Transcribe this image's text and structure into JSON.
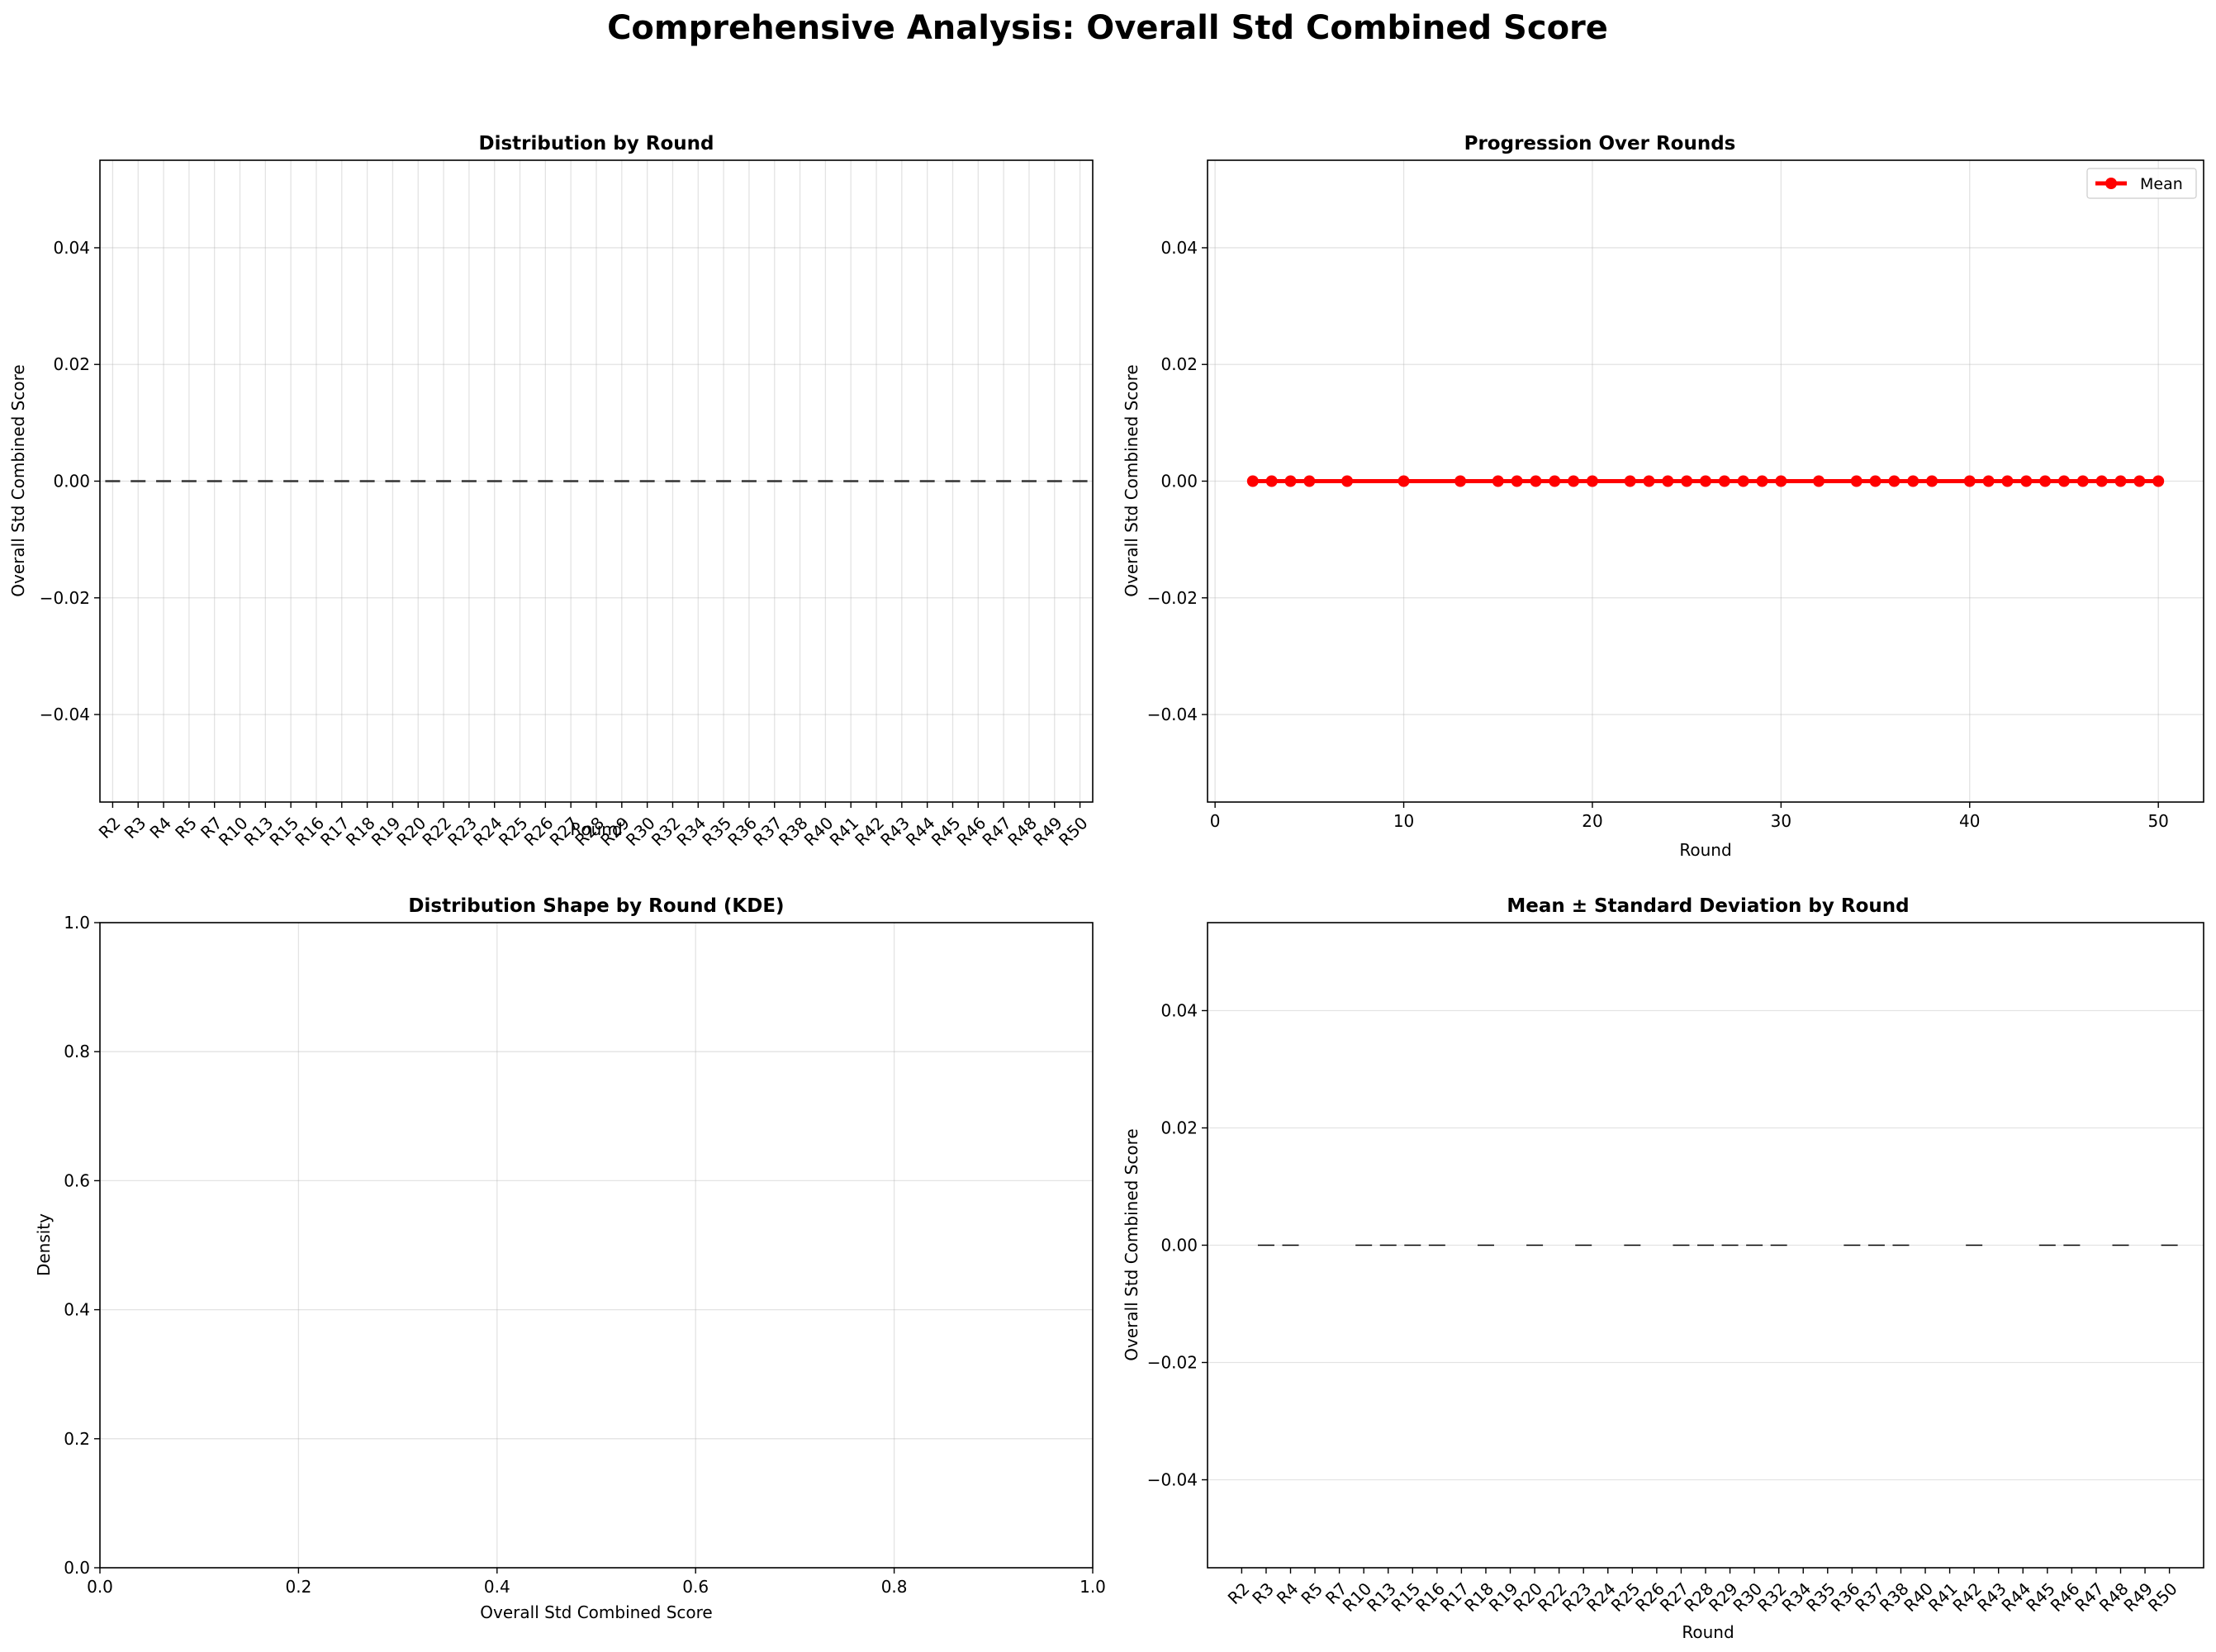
{
  "figure": {
    "title": "Comprehensive Analysis: Overall Std Combined Score"
  },
  "chart_data": [
    {
      "id": "box",
      "type": "box",
      "title": "Distribution by Round",
      "xlabel": "Round",
      "ylabel": "Overall Std Combined Score",
      "categories": [
        "R2",
        "R3",
        "R4",
        "R5",
        "R7",
        "R10",
        "R13",
        "R15",
        "R16",
        "R17",
        "R18",
        "R19",
        "R20",
        "R22",
        "R23",
        "R24",
        "R25",
        "R26",
        "R27",
        "R28",
        "R29",
        "R30",
        "R32",
        "R34",
        "R35",
        "R36",
        "R37",
        "R38",
        "R40",
        "R41",
        "R42",
        "R43",
        "R44",
        "R45",
        "R46",
        "R47",
        "R48",
        "R49",
        "R50"
      ],
      "medians": [
        0,
        0,
        0,
        0,
        0,
        0,
        0,
        0,
        0,
        0,
        0,
        0,
        0,
        0,
        0,
        0,
        0,
        0,
        0,
        0,
        0,
        0,
        0,
        0,
        0,
        0,
        0,
        0,
        0,
        0,
        0,
        0,
        0,
        0,
        0,
        0,
        0,
        0,
        0
      ],
      "ylim": [
        -0.055,
        0.055
      ],
      "yticks": [
        "0.04",
        "0.02",
        "0.00",
        "−0.02",
        "−0.04"
      ],
      "ytick_values": [
        0.04,
        0.02,
        0.0,
        -0.02,
        -0.04
      ],
      "grid": true
    },
    {
      "id": "line",
      "type": "line",
      "title": "Progression Over Rounds",
      "xlabel": "Round",
      "ylabel": "Overall Std Combined Score",
      "series": [
        {
          "name": "Mean",
          "color": "#ff0000",
          "x": [
            2,
            3,
            4,
            5,
            7,
            10,
            13,
            15,
            16,
            17,
            18,
            19,
            20,
            22,
            23,
            24,
            25,
            26,
            27,
            28,
            29,
            30,
            32,
            34,
            35,
            36,
            37,
            38,
            40,
            41,
            42,
            43,
            44,
            45,
            46,
            47,
            48,
            49,
            50
          ],
          "y": [
            0,
            0,
            0,
            0,
            0,
            0,
            0,
            0,
            0,
            0,
            0,
            0,
            0,
            0,
            0,
            0,
            0,
            0,
            0,
            0,
            0,
            0,
            0,
            0,
            0,
            0,
            0,
            0,
            0,
            0,
            0,
            0,
            0,
            0,
            0,
            0,
            0,
            0,
            0
          ]
        }
      ],
      "xlim": [
        -0.4,
        52.4
      ],
      "ylim": [
        -0.055,
        0.055
      ],
      "xticks": [
        "0",
        "10",
        "20",
        "30",
        "40",
        "50"
      ],
      "xtick_values": [
        0,
        10,
        20,
        30,
        40,
        50
      ],
      "yticks": [
        "0.04",
        "0.02",
        "0.00",
        "−0.02",
        "−0.04"
      ],
      "ytick_values": [
        0.04,
        0.02,
        0.0,
        -0.02,
        -0.04
      ],
      "legend": "top-right",
      "grid": true
    },
    {
      "id": "kde",
      "type": "line",
      "title": "Distribution Shape by Round (KDE)",
      "xlabel": "Overall Std Combined Score",
      "ylabel": "Density",
      "series": [],
      "xlim": [
        0,
        1
      ],
      "ylim": [
        0,
        1
      ],
      "xticks": [
        "0.0",
        "0.2",
        "0.4",
        "0.6",
        "0.8",
        "1.0"
      ],
      "xtick_values": [
        0,
        0.2,
        0.4,
        0.6,
        0.8,
        1.0
      ],
      "yticks": [
        "0.0",
        "0.2",
        "0.4",
        "0.6",
        "0.8",
        "1.0"
      ],
      "ytick_values": [
        0,
        0.2,
        0.4,
        0.6,
        0.8,
        1.0
      ],
      "grid": true
    },
    {
      "id": "err",
      "type": "bar",
      "title": "Mean ± Standard Deviation by Round",
      "xlabel": "Round",
      "ylabel": "Overall Std Combined Score",
      "categories": [
        "R2",
        "R3",
        "R4",
        "R5",
        "R7",
        "R10",
        "R13",
        "R15",
        "R16",
        "R17",
        "R18",
        "R19",
        "R20",
        "R22",
        "R23",
        "R24",
        "R25",
        "R26",
        "R27",
        "R28",
        "R29",
        "R30",
        "R32",
        "R34",
        "R35",
        "R36",
        "R37",
        "R38",
        "R40",
        "R41",
        "R42",
        "R43",
        "R44",
        "R45",
        "R46",
        "R47",
        "R48",
        "R49",
        "R50"
      ],
      "means": [
        0,
        0,
        0,
        0,
        0,
        0,
        0,
        0,
        0,
        0,
        0,
        0,
        0,
        0,
        0,
        0,
        0,
        0,
        0,
        0,
        0,
        0,
        0,
        0,
        0,
        0,
        0,
        0,
        0,
        0,
        0,
        0,
        0,
        0,
        0,
        0,
        0,
        0,
        0
      ],
      "std_visible": [
        false,
        true,
        true,
        false,
        false,
        true,
        true,
        true,
        true,
        false,
        true,
        false,
        true,
        false,
        true,
        false,
        true,
        false,
        true,
        true,
        true,
        true,
        true,
        false,
        false,
        true,
        true,
        true,
        false,
        false,
        true,
        false,
        false,
        true,
        true,
        false,
        true,
        false,
        true
      ],
      "ylim": [
        -0.055,
        0.055
      ],
      "yticks": [
        "0.04",
        "0.02",
        "0.00",
        "−0.02",
        "−0.04"
      ],
      "ytick_values": [
        0.04,
        0.02,
        0.0,
        -0.02,
        -0.04
      ],
      "grid": true
    }
  ]
}
